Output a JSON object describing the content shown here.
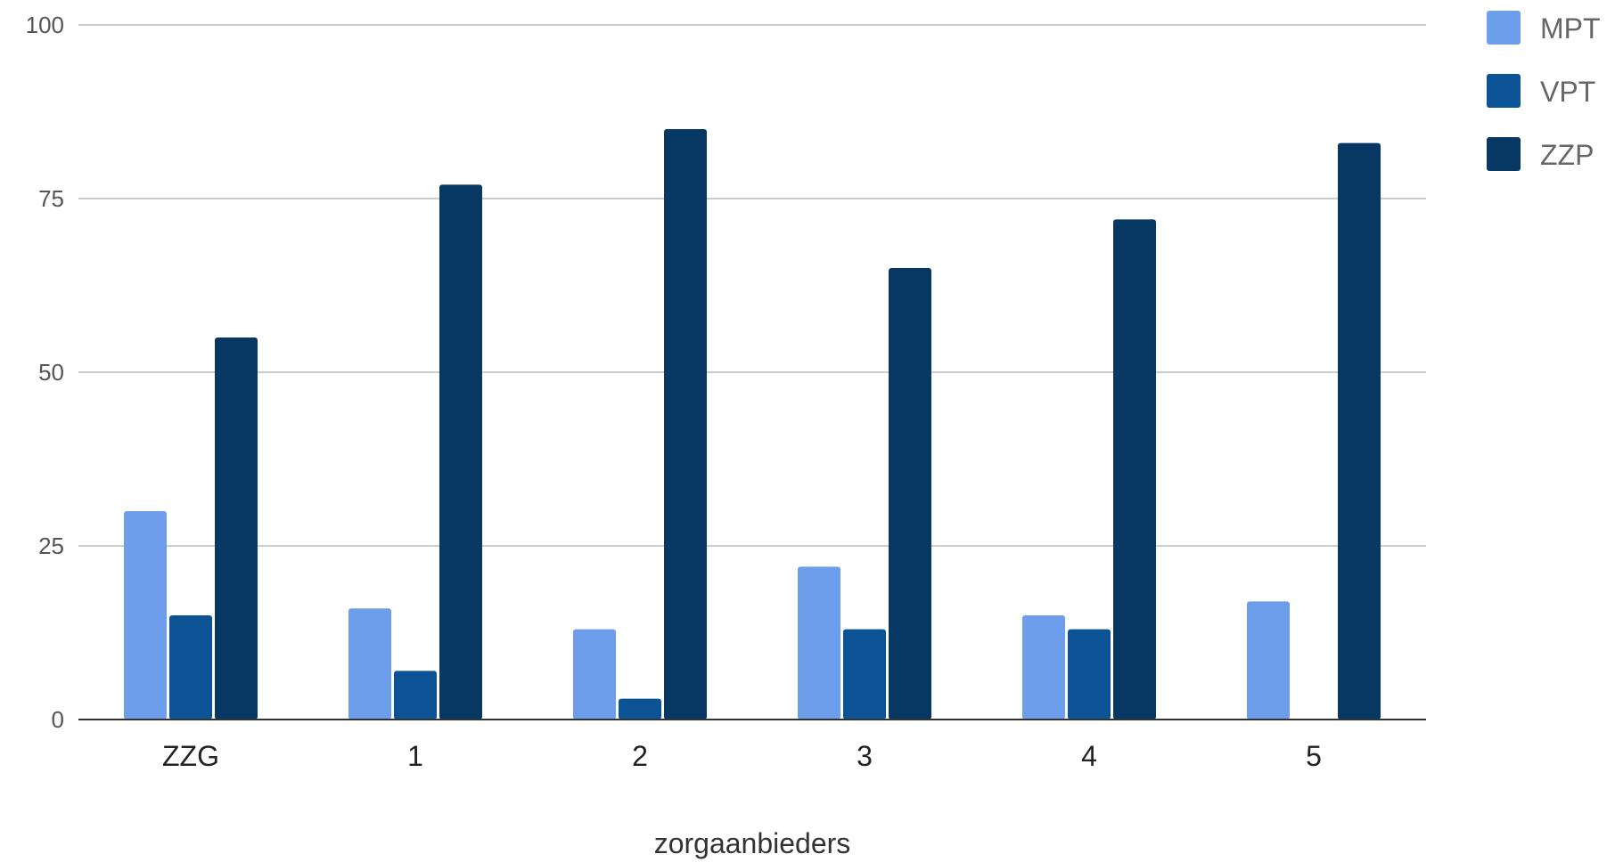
{
  "chart_data": {
    "type": "bar",
    "categories": [
      "ZZG",
      "1",
      "2",
      "3",
      "4",
      "5"
    ],
    "series": [
      {
        "name": "MPT",
        "values": [
          30,
          16,
          13,
          22,
          15,
          17
        ],
        "color": "#6d9eeb"
      },
      {
        "name": "VPT",
        "values": [
          15,
          7,
          3,
          13,
          13,
          0
        ],
        "color": "#0b5394"
      },
      {
        "name": "ZZP",
        "values": [
          55,
          77,
          85,
          65,
          72,
          83
        ],
        "color": "#073763"
      }
    ],
    "title": "",
    "xlabel": "zorgaanbieders",
    "ylabel": "",
    "ylim": [
      0,
      100
    ],
    "yticks": [
      0,
      25,
      50,
      75,
      100
    ],
    "grid": true,
    "legend_position": "right"
  }
}
